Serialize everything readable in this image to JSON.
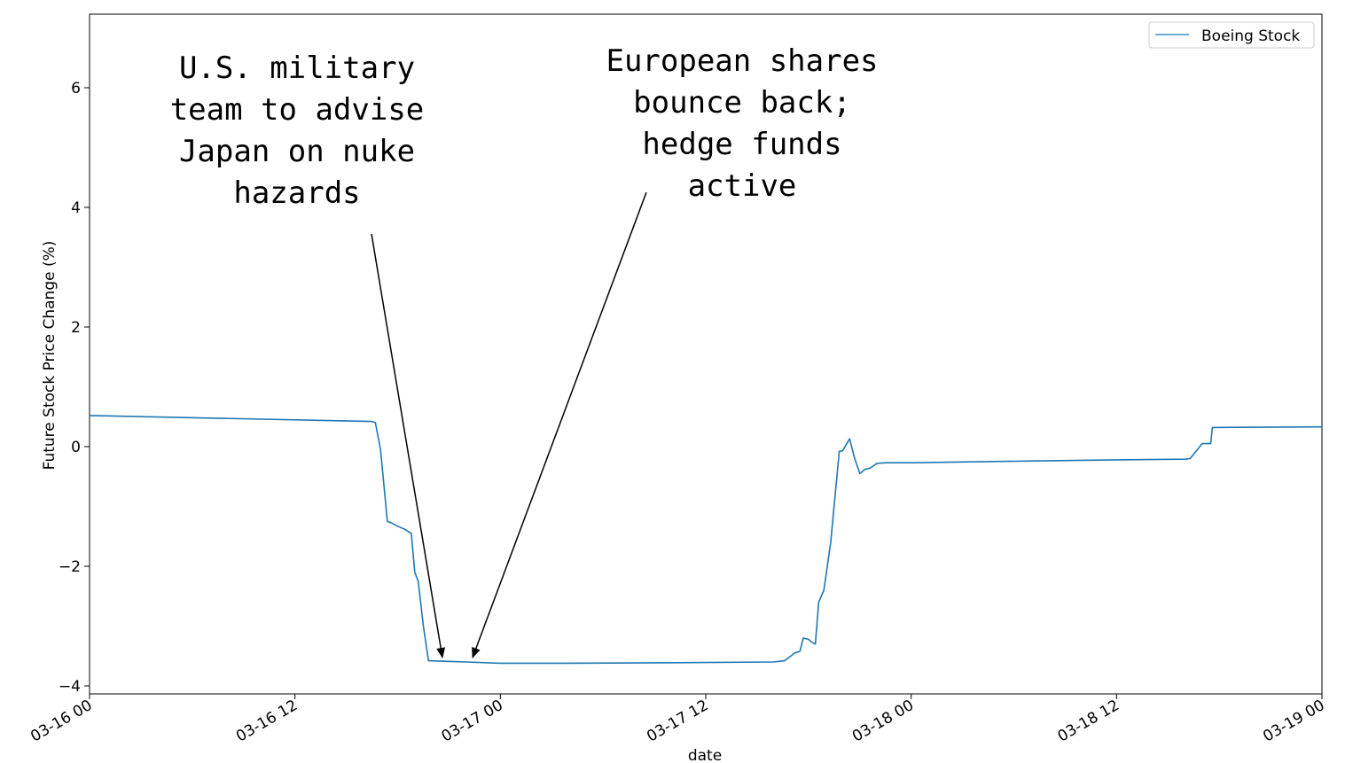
{
  "chart_data": {
    "type": "line",
    "xlabel": "date",
    "ylabel": "Future Stock Price Change (%)",
    "x_ticks": [
      "03-16 00",
      "03-16 12",
      "03-17 00",
      "03-17 12",
      "03-18 00",
      "03-18 12",
      "03-19 00"
    ],
    "y_ticks": [
      "−4",
      "−2",
      "0",
      "2",
      "4",
      "6"
    ],
    "xlim_hours": [
      0,
      72
    ],
    "ylim": [
      -4.2,
      7.2
    ],
    "grid": false,
    "legend_position": "upper right",
    "series": [
      {
        "name": "Boeing Stock",
        "color": "#1f77b4",
        "x_hours": [
          0,
          16.5,
          16.7,
          17.0,
          17.4,
          17.6,
          18.0,
          18.4,
          18.8,
          19.0,
          19.2,
          19.5,
          19.8,
          22.0,
          24.0,
          28.0,
          35.0,
          40.0,
          40.6,
          41.2,
          41.5,
          41.7,
          42.0,
          42.2,
          42.4,
          42.6,
          42.9,
          43.1,
          43.3,
          43.8,
          44.0,
          44.4,
          44.7,
          45.0,
          45.3,
          45.6,
          46.0,
          46.5,
          48.0,
          55.0,
          60.0,
          64.0,
          64.3,
          65.0,
          65.5,
          65.6,
          72.0
        ],
        "values": [
          0.52,
          0.42,
          0.4,
          -0.05,
          -1.25,
          -1.27,
          -1.33,
          -1.38,
          -1.45,
          -2.1,
          -2.25,
          -3.0,
          -3.58,
          -3.6,
          -3.62,
          -3.62,
          -3.61,
          -3.6,
          -3.58,
          -3.45,
          -3.42,
          -3.2,
          -3.22,
          -3.27,
          -3.3,
          -2.6,
          -2.4,
          -2.0,
          -1.6,
          -0.08,
          -0.07,
          0.13,
          -0.2,
          -0.45,
          -0.38,
          -0.36,
          -0.28,
          -0.27,
          -0.27,
          -0.24,
          -0.22,
          -0.21,
          -0.2,
          0.05,
          0.05,
          0.32,
          0.33
        ]
      }
    ],
    "annotations": [
      {
        "lines": [
          "U.S. military",
          "team to advise",
          "Japan on nuke",
          "hazards"
        ],
        "target_hours": 20.8,
        "target_value": -3.6
      },
      {
        "lines": [
          "European shares",
          "bounce back;",
          "hedge funds",
          "active"
        ],
        "target_hours": 22.5,
        "target_value": -3.6
      }
    ]
  }
}
